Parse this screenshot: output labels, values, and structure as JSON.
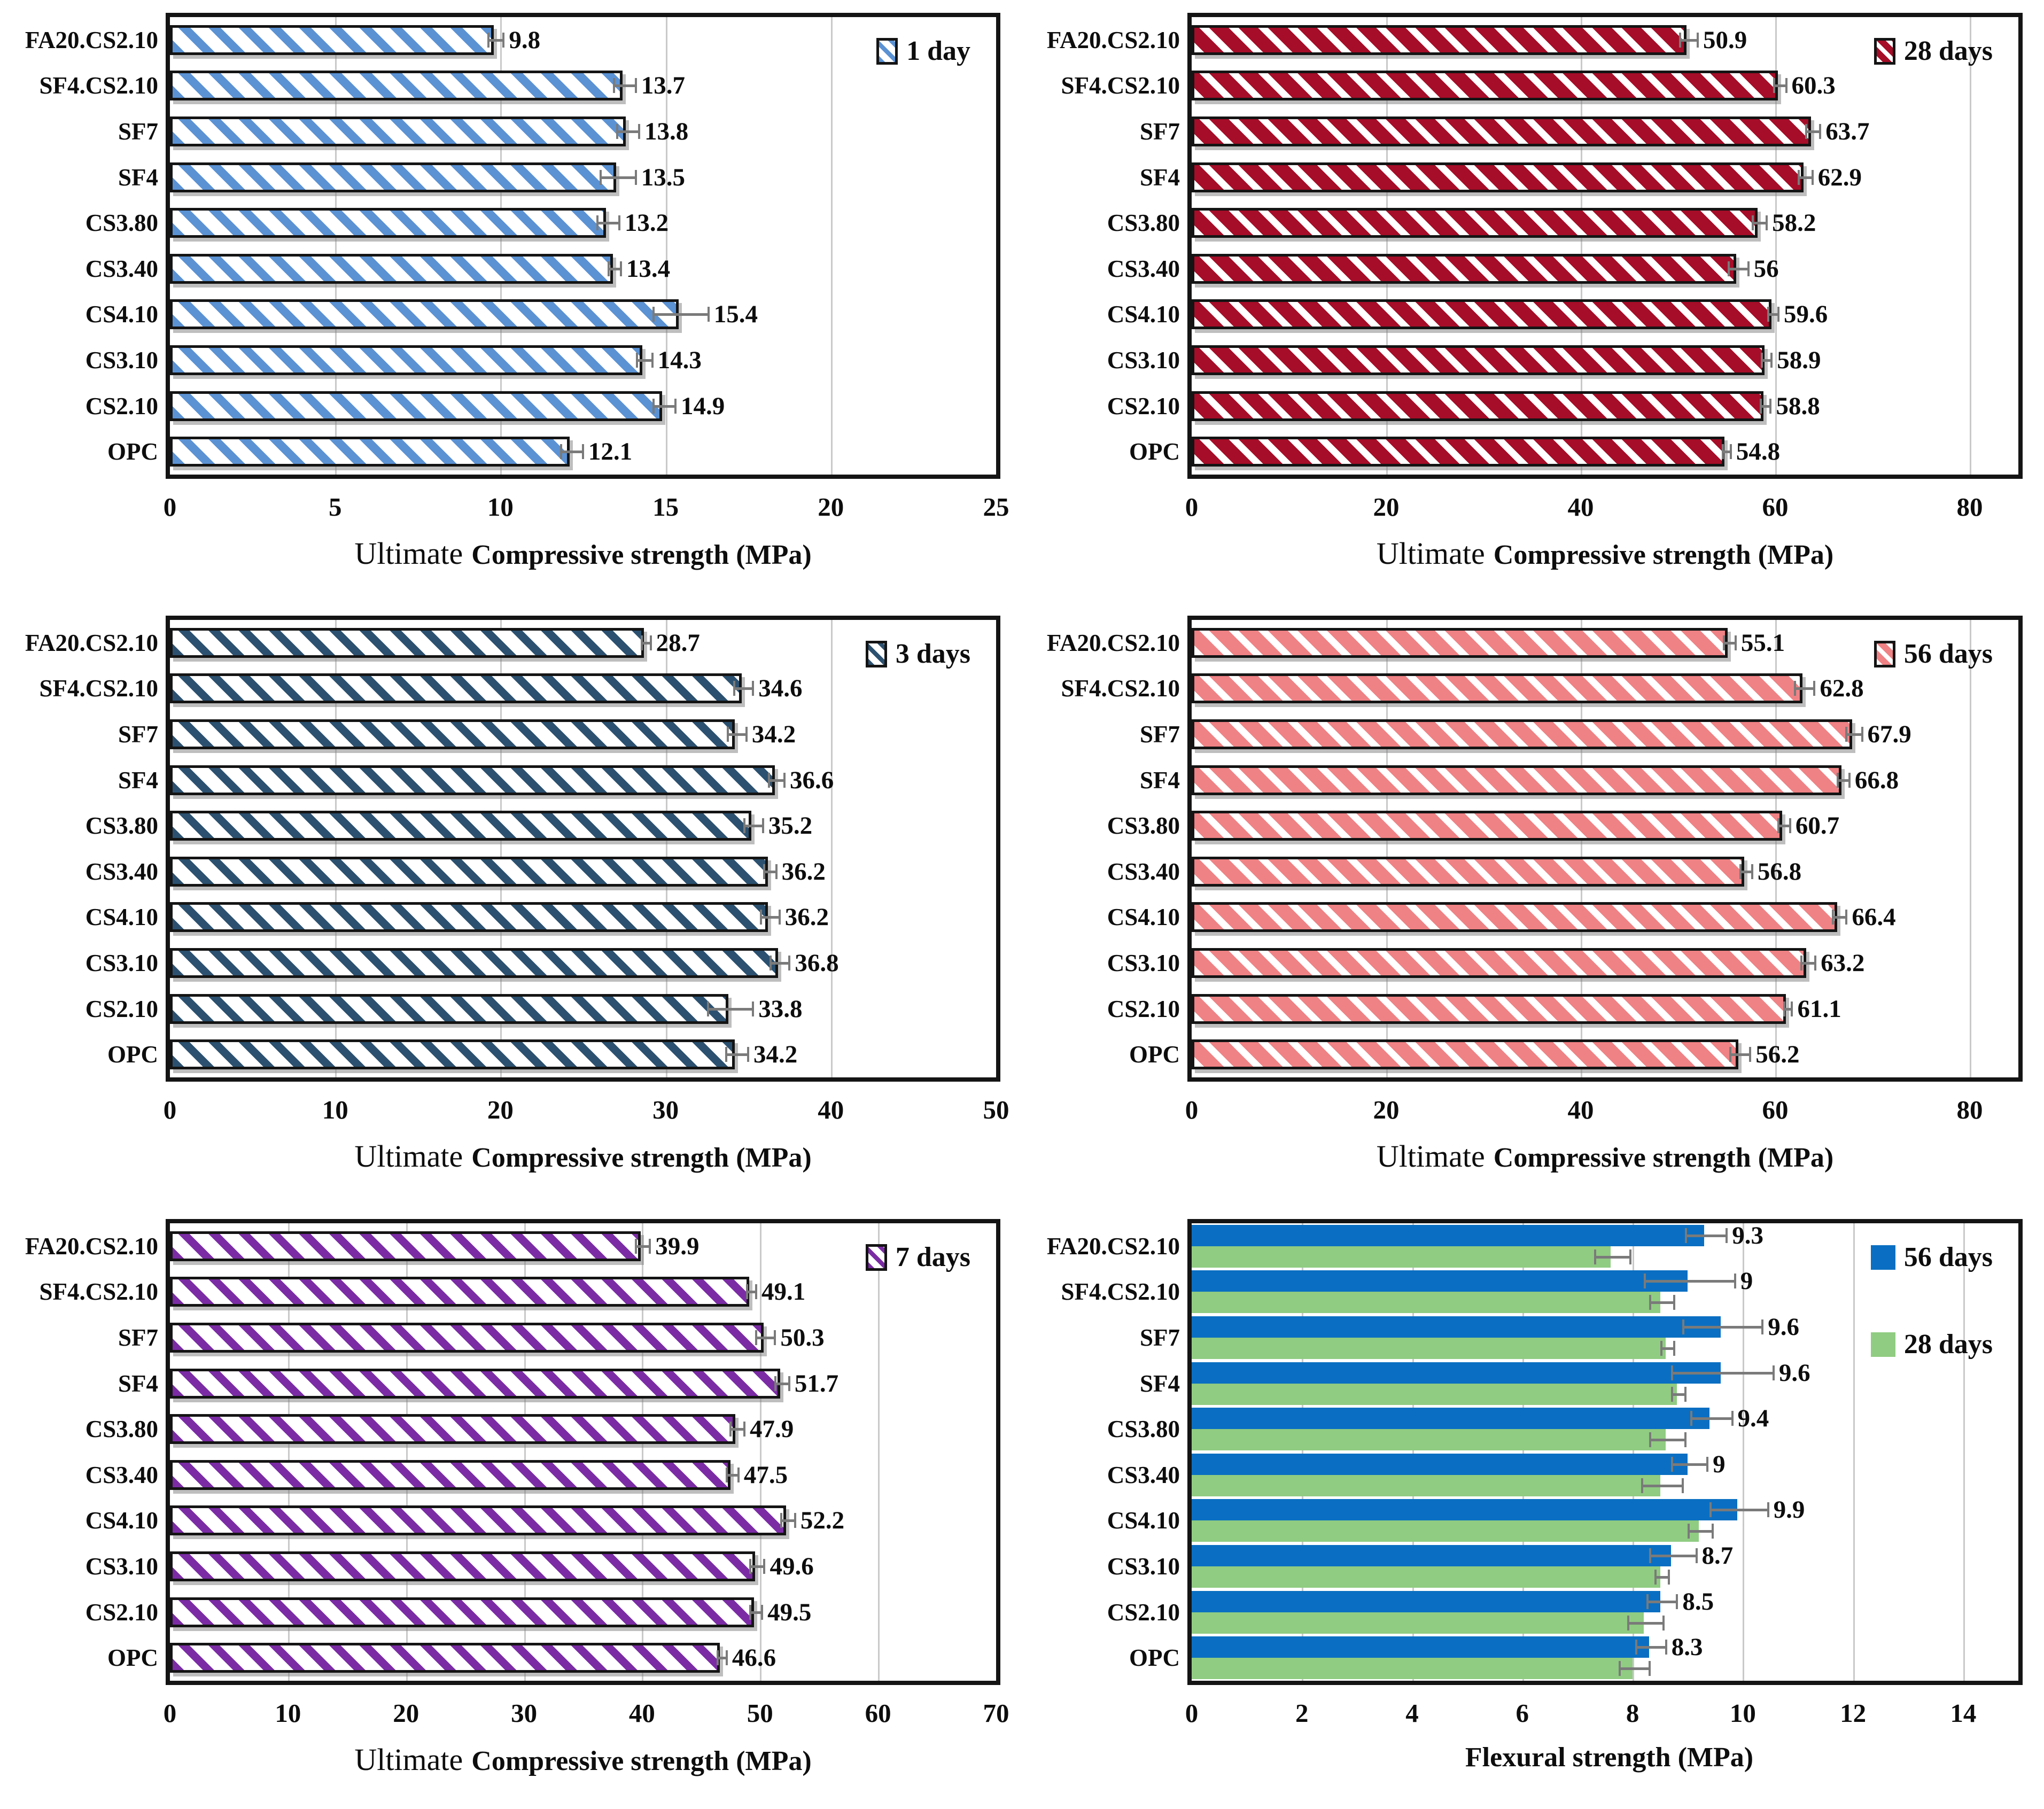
{
  "colors": {
    "error_bar": "#7a7a7a",
    "gridline": "#c9c9c9",
    "frame": "#141414"
  },
  "chart_data": [
    {
      "id": "compressive-1-day",
      "type": "bar",
      "orientation": "horizontal",
      "title": "",
      "xlabel_prefix": "Ultimate",
      "xlabel": "Compressive strength (MPa)",
      "xlim": [
        0,
        25
      ],
      "xticks": [
        0,
        5,
        10,
        15,
        20,
        25
      ],
      "grid": true,
      "legend_position": "top-right",
      "categories_top_to_bottom": [
        "FA20.CS2.10",
        "SF4.CS2.10",
        "SF7",
        "SF4",
        "CS3.80",
        "CS3.40",
        "CS4.10",
        "CS3.10",
        "CS2.10",
        "OPC"
      ],
      "series": [
        {
          "name": "1 day",
          "pattern": "stripes",
          "stripe_color": "#5B92D4",
          "bg_color": "#ffffff",
          "stripe_w": 16,
          "gap_w": 24,
          "values": [
            9.8,
            13.7,
            13.8,
            13.5,
            13.2,
            13.4,
            15.4,
            14.3,
            14.9,
            12.1
          ],
          "value_labels": [
            "9.8",
            "13.7",
            "13.8",
            "13.5",
            "13.2",
            "13.4",
            "15.4",
            "14.3",
            "14.9",
            "12.1"
          ],
          "errors": [
            0.2,
            0.3,
            0.3,
            0.5,
            0.3,
            0.15,
            0.8,
            0.2,
            0.3,
            0.3
          ],
          "labels_visible": true
        }
      ]
    },
    {
      "id": "compressive-28-days",
      "type": "bar",
      "orientation": "horizontal",
      "title": "",
      "xlabel_prefix": "Ultimate",
      "xlabel": "Compressive strength (MPa)",
      "xlim": [
        0,
        85
      ],
      "xticks": [
        0,
        20,
        40,
        60,
        80
      ],
      "grid": true,
      "legend_position": "top-right",
      "categories_top_to_bottom": [
        "FA20.CS2.10",
        "SF4.CS2.10",
        "SF7",
        "SF4",
        "CS3.80",
        "CS3.40",
        "CS4.10",
        "CS3.10",
        "CS2.10",
        "OPC"
      ],
      "series": [
        {
          "name": "28 days",
          "pattern": "stripes",
          "stripe_color": "#ffffff",
          "bg_color": "#A60D28",
          "stripe_w": 13,
          "gap_w": 26,
          "values": [
            50.9,
            60.3,
            63.7,
            62.9,
            58.2,
            56,
            59.6,
            58.9,
            58.8,
            54.8
          ],
          "value_labels": [
            "50.9",
            "60.3",
            "63.7",
            "62.9",
            "58.2",
            "56",
            "59.6",
            "58.9",
            "58.8",
            "54.8"
          ],
          "errors": [
            0.8,
            0.5,
            0.6,
            0.6,
            0.6,
            0.9,
            0.4,
            0.4,
            0.4,
            0.3
          ],
          "labels_visible": true
        }
      ]
    },
    {
      "id": "compressive-3-days",
      "type": "bar",
      "orientation": "horizontal",
      "title": "",
      "xlabel_prefix": "Ultimate",
      "xlabel": "Compressive strength (MPa)",
      "xlim": [
        0,
        50
      ],
      "xticks": [
        0,
        10,
        20,
        30,
        40,
        50
      ],
      "grid": true,
      "legend_position": "top-right",
      "categories_top_to_bottom": [
        "FA20.CS2.10",
        "SF4.CS2.10",
        "SF7",
        "SF4",
        "CS3.80",
        "CS3.40",
        "CS4.10",
        "CS3.10",
        "CS2.10",
        "OPC"
      ],
      "series": [
        {
          "name": "3 days",
          "pattern": "stripes",
          "stripe_color": "#2C5170",
          "bg_color": "#ffffff",
          "stripe_w": 15,
          "gap_w": 25,
          "values": [
            28.7,
            34.6,
            34.2,
            36.6,
            35.2,
            36.2,
            36.2,
            36.8,
            33.8,
            34.2
          ],
          "value_labels": [
            "28.7",
            "34.6",
            "34.2",
            "36.6",
            "35.2",
            "36.2",
            "36.2",
            "36.8",
            "33.8",
            "34.2"
          ],
          "errors": [
            0.2,
            0.5,
            0.5,
            0.4,
            0.5,
            0.3,
            0.5,
            0.5,
            1.3,
            0.6
          ],
          "labels_visible": true
        }
      ]
    },
    {
      "id": "compressive-56-days",
      "type": "bar",
      "orientation": "horizontal",
      "title": "",
      "xlabel_prefix": "Ultimate",
      "xlabel": "Compressive strength (MPa)",
      "xlim": [
        0,
        85
      ],
      "xticks": [
        0,
        20,
        40,
        60,
        80
      ],
      "grid": true,
      "legend_position": "top-right",
      "categories_top_to_bottom": [
        "FA20.CS2.10",
        "SF4.CS2.10",
        "SF7",
        "SF4",
        "CS3.80",
        "CS3.40",
        "CS4.10",
        "CS3.10",
        "CS2.10",
        "OPC"
      ],
      "series": [
        {
          "name": "56 days",
          "pattern": "stripes",
          "stripe_color": "#ffffff",
          "bg_color": "#EF8285",
          "stripe_w": 13,
          "gap_w": 26,
          "values": [
            55.1,
            62.8,
            67.9,
            66.8,
            60.7,
            56.8,
            66.4,
            63.2,
            61.1,
            56.2
          ],
          "value_labels": [
            "55.1",
            "62.8",
            "67.9",
            "66.8",
            "60.7",
            "56.8",
            "66.4",
            "63.2",
            "61.1",
            "56.2"
          ],
          "errors": [
            0.5,
            0.9,
            0.7,
            0.5,
            0.5,
            0.5,
            0.6,
            0.6,
            0.3,
            0.9
          ],
          "labels_visible": true
        }
      ]
    },
    {
      "id": "compressive-7-days",
      "type": "bar",
      "orientation": "horizontal",
      "title": "",
      "xlabel_prefix": "Ultimate",
      "xlabel": "Compressive strength (MPa)",
      "xlim": [
        0,
        70
      ],
      "xticks": [
        0,
        10,
        20,
        30,
        40,
        50,
        60,
        70
      ],
      "grid": true,
      "legend_position": "top-right",
      "categories_top_to_bottom": [
        "FA20.CS2.10",
        "SF4.CS2.10",
        "SF7",
        "SF4",
        "CS3.80",
        "CS3.40",
        "CS4.10",
        "CS3.10",
        "CS2.10",
        "OPC"
      ],
      "series": [
        {
          "name": "7 days",
          "pattern": "stripes",
          "stripe_color": "#7B2CA5",
          "bg_color": "#ffffff",
          "stripe_w": 15,
          "gap_w": 25,
          "values": [
            39.9,
            49.1,
            50.3,
            51.7,
            47.9,
            47.5,
            52.2,
            49.6,
            49.5,
            46.6
          ],
          "value_labels": [
            "39.9",
            "49.1",
            "50.3",
            "51.7",
            "47.9",
            "47.5",
            "52.2",
            "49.6",
            "49.5",
            "46.6"
          ],
          "errors": [
            0.5,
            0.3,
            0.7,
            0.5,
            0.5,
            0.4,
            0.5,
            0.5,
            0.4,
            0.3
          ],
          "labels_visible": true
        }
      ]
    },
    {
      "id": "flexural-strength",
      "type": "bar",
      "orientation": "horizontal",
      "title": "",
      "xlabel_prefix": "",
      "xlabel": "Flexural strength (MPa)",
      "xlim": [
        0,
        15
      ],
      "xticks": [
        0,
        2,
        4,
        6,
        8,
        10,
        12,
        14
      ],
      "grid": true,
      "legend_position": "top-right",
      "categories_top_to_bottom": [
        "FA20.CS2.10",
        "SF4.CS2.10",
        "SF7",
        "SF4",
        "CS3.80",
        "CS3.40",
        "CS4.10",
        "CS3.10",
        "CS2.10",
        "OPC"
      ],
      "series": [
        {
          "name": "56 days",
          "pattern": "solid",
          "color": "#0A6FC2",
          "values": [
            9.3,
            9,
            9.6,
            9.6,
            9.4,
            9,
            9.9,
            8.7,
            8.5,
            8.3
          ],
          "value_labels": [
            "9.3",
            "9",
            "9.6",
            "9.6",
            "9.4",
            "9",
            "9.9",
            "8.7",
            "8.5",
            "8.3"
          ],
          "errors": [
            0.35,
            0.8,
            0.7,
            0.9,
            0.35,
            0.3,
            0.5,
            0.4,
            0.25,
            0.25
          ],
          "labels_visible": true
        },
        {
          "name": "28 days",
          "pattern": "solid",
          "color": "#90CC82",
          "values": [
            7.6,
            8.5,
            8.6,
            8.8,
            8.6,
            8.5,
            9.2,
            8.5,
            8.2,
            8.0
          ],
          "value_labels": [],
          "errors": [
            0.3,
            0.2,
            0.1,
            0.1,
            0.3,
            0.35,
            0.2,
            0.1,
            0.3,
            0.25
          ],
          "labels_visible": false
        }
      ]
    }
  ]
}
